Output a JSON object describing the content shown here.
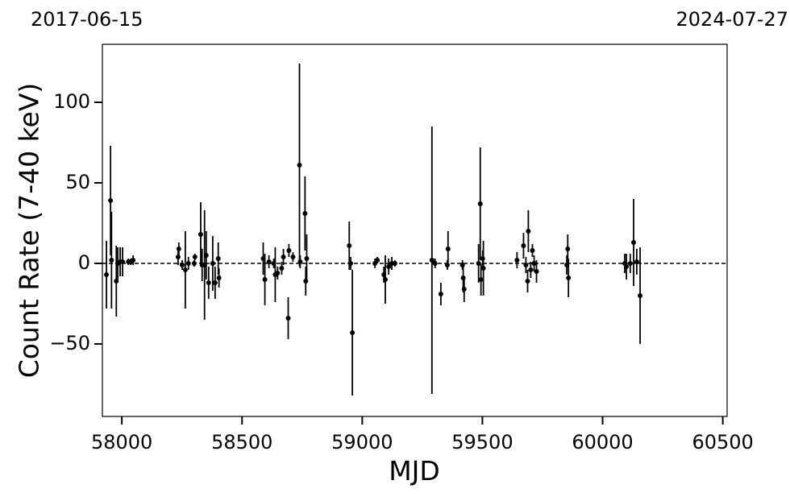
{
  "chart_data": {
    "type": "scatter",
    "x_label": "MJD",
    "y_label": "Count Rate (7-40 keV)",
    "annotations": [
      "2017-06-15",
      "2024-07-27"
    ],
    "color": "#000000",
    "reference_line": 0,
    "xlim": [
      57919,
      60518
    ],
    "ylim": [
      -95,
      136
    ],
    "xticks": [
      58000,
      58500,
      59000,
      59500,
      60000,
      60500
    ],
    "yticks": [
      {
        "value": -50,
        "label": "−50"
      },
      0,
      50,
      100
    ],
    "x": [
      57936,
      57953,
      57957,
      57977,
      57983,
      57993,
      58003,
      58027,
      58037,
      58047,
      58234,
      58237,
      58251,
      58264,
      58277,
      58301,
      58304,
      58328,
      58334,
      58344,
      58351,
      58361,
      58378,
      58388,
      58401,
      58404,
      58588,
      58595,
      58612,
      58632,
      58638,
      58648,
      58665,
      58672,
      58692,
      58695,
      58712,
      58739,
      58742,
      58762,
      58765,
      58769,
      58946,
      58952,
      58959,
      59053,
      59063,
      59090,
      59096,
      59110,
      59123,
      59136,
      59290,
      59303,
      59327,
      59354,
      59357,
      59417,
      59420,
      59424,
      59484,
      59491,
      59494,
      59501,
      59504,
      59644,
      59671,
      59681,
      59688,
      59691,
      59701,
      59708,
      59715,
      59725,
      59851,
      59855,
      59858,
      60092,
      60099,
      60115,
      60129,
      60142,
      60156
    ],
    "values": [
      -7,
      39,
      2,
      -11,
      0,
      1,
      1,
      1,
      1,
      2,
      4,
      9,
      -1,
      -4,
      0,
      0,
      4,
      18,
      -1,
      -1,
      5,
      -12,
      0,
      -12,
      3,
      -9,
      3,
      -10,
      1,
      0,
      -7,
      -6,
      -3,
      4,
      -34,
      8,
      4,
      61,
      1,
      31,
      -11,
      3,
      11,
      0,
      -43,
      0,
      2,
      -7,
      -10,
      -2,
      0,
      0,
      2,
      0,
      -19,
      -1,
      9,
      -1,
      -9,
      -16,
      0,
      37,
      -10,
      3,
      -3,
      2,
      11,
      -1,
      -11,
      20,
      -4,
      8,
      0,
      -5,
      -1,
      9,
      -9,
      0,
      -2,
      0,
      13,
      1,
      -20
    ],
    "errors": [
      21,
      34,
      30,
      22,
      10,
      9,
      9,
      2,
      2,
      3,
      5,
      4,
      3,
      24,
      4,
      2,
      2,
      20,
      10,
      34,
      15,
      10,
      17,
      10,
      10,
      6,
      10,
      16,
      4,
      3,
      17,
      4,
      4,
      5,
      13,
      4,
      3,
      63,
      4,
      23,
      9,
      15,
      15,
      4,
      39,
      3,
      2,
      5,
      15,
      5,
      4,
      2,
      83,
      3,
      7,
      3,
      11,
      3,
      9,
      8,
      12,
      35,
      10,
      5,
      17,
      5,
      8,
      5,
      7,
      13,
      5,
      4,
      5,
      7,
      6,
      9,
      12,
      6,
      8,
      6,
      27,
      8,
      30
    ]
  }
}
